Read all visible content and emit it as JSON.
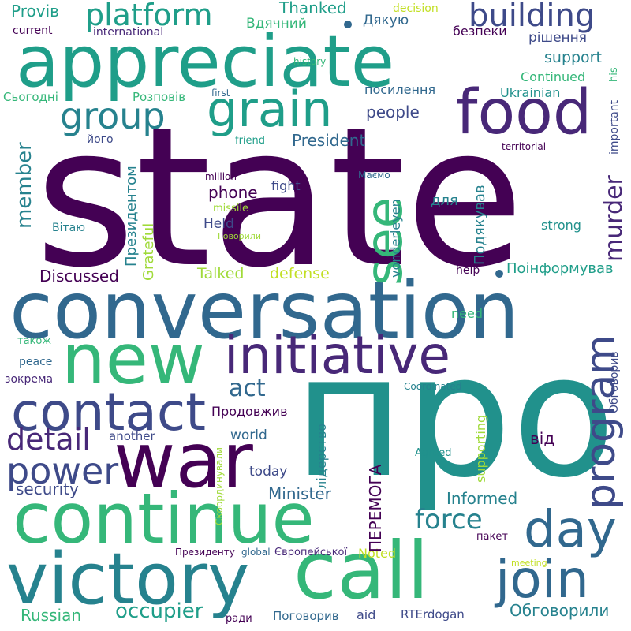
{
  "words": [
    {
      "text": "state",
      "color": "#440154"
    },
    {
      "text": "про",
      "color": "#21918c"
    },
    {
      "text": "conversation",
      "color": "#31688e"
    },
    {
      "text": "appreciate",
      "color": "#1f9e89"
    },
    {
      "text": "new",
      "color": "#35b779"
    },
    {
      "text": "war",
      "color": "#440154"
    },
    {
      "text": "call",
      "color": "#35b779"
    },
    {
      "text": "continue",
      "color": "#35b779"
    },
    {
      "text": "victory",
      "color": "#26828e"
    },
    {
      "text": "initiative",
      "color": "#482878"
    },
    {
      "text": "contact",
      "color": "#3e4a89"
    },
    {
      "text": "food",
      "color": "#482878"
    },
    {
      "text": "grain",
      "color": "#1f9e89"
    },
    {
      "text": "join",
      "color": "#31688e"
    },
    {
      "text": "day",
      "color": "#31688e"
    },
    {
      "text": "program",
      "color": "#3e4a89"
    },
    {
      "text": "group",
      "color": "#26828e"
    },
    {
      "text": "see",
      "color": "#35b779"
    },
    {
      "text": "building",
      "color": "#3e4a89"
    },
    {
      "text": "platform",
      "color": "#1f9e89"
    },
    {
      "text": "power",
      "color": "#3e4a89"
    },
    {
      "text": "force",
      "color": "#26828e"
    },
    {
      "text": "detail",
      "color": "#482878"
    },
    {
      "text": "murder",
      "color": "#482878"
    },
    {
      "text": "act",
      "color": "#31688e"
    },
    {
      "text": "member",
      "color": "#26828e"
    },
    {
      "text": "occupier",
      "color": "#1f9e89"
    },
    {
      "text": "President",
      "color": "#31688e"
    },
    {
      "text": "Обговорили",
      "color": "#26828e"
    },
    {
      "text": "security",
      "color": "#3e4a89"
    },
    {
      "text": "Minister",
      "color": "#31688e"
    },
    {
      "text": "Informed",
      "color": "#26828e"
    },
    {
      "text": "Discussed",
      "color": "#440154"
    },
    {
      "text": "ПЕРЕМОГА",
      "color": "#440154"
    },
    {
      "text": "phone",
      "color": "#440154"
    },
    {
      "text": "people",
      "color": "#3e4a89"
    },
    {
      "text": "Thanked",
      "color": "#1f9e89"
    },
    {
      "text": "Russian",
      "color": "#35b779"
    },
    {
      "text": "Поінформував",
      "color": "#1f9e89"
    },
    {
      "text": "Президентом",
      "color": "#26828e"
    },
    {
      "text": "Подякував",
      "color": "#26828e"
    },
    {
      "text": "support",
      "color": "#26828e"
    },
    {
      "text": "defense",
      "color": "#c2df23"
    },
    {
      "text": "Talked",
      "color": "#a0da39"
    },
    {
      "text": "Grateful",
      "color": "#a0da39"
    },
    {
      "text": "vonderleyen",
      "color": "#26828e"
    },
    {
      "text": "Held",
      "color": "#3e4a89"
    },
    {
      "text": "Provів",
      "color": "#1f9e89"
    },
    {
      "text": "Дякую",
      "color": "#31688e"
    },
    {
      "text": "Вдячний",
      "color": "#35b779"
    },
    {
      "text": "посилення",
      "color": "#31688e"
    },
    {
      "text": "рішення",
      "color": "#3e4a89"
    },
    {
      "text": "безпеки",
      "color": "#440154"
    },
    {
      "text": "Продовжив",
      "color": "#440154"
    },
    {
      "text": "world",
      "color": "#31688e"
    },
    {
      "text": "today",
      "color": "#3e4a89"
    },
    {
      "text": "supporting",
      "color": "#a0da39"
    },
    {
      "text": "лідерство",
      "color": "#26828e"
    },
    {
      "text": "від",
      "color": "#440154"
    },
    {
      "text": "для",
      "color": "#26828e"
    },
    {
      "text": "fight",
      "color": "#3e4a89"
    },
    {
      "text": "Continued",
      "color": "#35b779"
    },
    {
      "text": "Ukrainian",
      "color": "#21918c"
    },
    {
      "text": "strong",
      "color": "#21918c"
    },
    {
      "text": "Розповів",
      "color": "#35b779"
    },
    {
      "text": "Сьогодні",
      "color": "#35b779"
    },
    {
      "text": "current",
      "color": "#440154"
    },
    {
      "text": "international",
      "color": "#482878"
    },
    {
      "text": "decision",
      "color": "#c2df23"
    },
    {
      "text": "his",
      "color": "#35b779"
    },
    {
      "text": "history",
      "color": "#35b779"
    },
    {
      "text": "first",
      "color": "#31688e"
    },
    {
      "text": "friend",
      "color": "#1f9e89"
    },
    {
      "text": "його",
      "color": "#3e4a89"
    },
    {
      "text": "important",
      "color": "#3e4a89"
    },
    {
      "text": "territorial",
      "color": "#440154"
    },
    {
      "text": "million",
      "color": "#440154"
    },
    {
      "text": "missile",
      "color": "#a0da39"
    },
    {
      "text": "Маємо",
      "color": "#31688e"
    },
    {
      "text": "Вітаю",
      "color": "#26828e"
    },
    {
      "text": "Говорили",
      "color": "#a0da39"
    },
    {
      "text": "help",
      "color": "#440154"
    },
    {
      "text": "need",
      "color": "#35b779"
    },
    {
      "text": "також",
      "color": "#35b779"
    },
    {
      "text": "peace",
      "color": "#31688e"
    },
    {
      "text": "зокрема",
      "color": "#482878"
    },
    {
      "text": "another",
      "color": "#3e4a89"
    },
    {
      "text": "Coordinated",
      "color": "#26828e"
    },
    {
      "text": "Agreed",
      "color": "#21918c"
    },
    {
      "text": "Обговорив",
      "color": "#3e4a89"
    },
    {
      "text": "Скоординували",
      "color": "#a0da39"
    },
    {
      "text": "пакет",
      "color": "#440154"
    },
    {
      "text": "Noted",
      "color": "#c2df23"
    },
    {
      "text": "meeting",
      "color": "#c2df23"
    },
    {
      "text": "Президенту",
      "color": "#440154"
    },
    {
      "text": "global",
      "color": "#31688e"
    },
    {
      "text": "Європейської",
      "color": "#482878"
    },
    {
      "text": "aid",
      "color": "#3e4a89"
    },
    {
      "text": "Поговорив",
      "color": "#31688e"
    },
    {
      "text": "RTErdogan",
      "color": "#3e4a89"
    },
    {
      "text": "ради",
      "color": "#440154"
    }
  ]
}
